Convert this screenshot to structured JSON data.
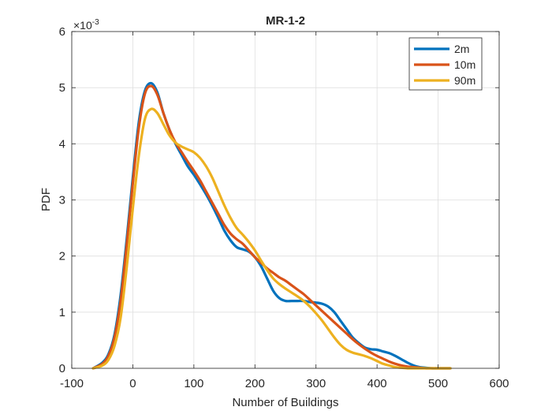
{
  "chart_data": {
    "type": "line",
    "title": "MR-1-2",
    "xlabel": "Number of Buildings",
    "ylabel": "PDF",
    "xlim": [
      -100,
      600
    ],
    "ylim": [
      0,
      6
    ],
    "y_exponent_label": "×10",
    "y_exponent_power": "-3",
    "xticks": [
      "-100",
      "0",
      "100",
      "200",
      "300",
      "400",
      "500",
      "600"
    ],
    "yticks": [
      "0",
      "1",
      "2",
      "3",
      "4",
      "5",
      "6"
    ],
    "grid": true,
    "legend_position": "top-right",
    "series": [
      {
        "name": "2m",
        "color": "#0072BD",
        "x": [
          -65,
          -50,
          -40,
          -30,
          -20,
          -10,
          0,
          10,
          20,
          30,
          40,
          50,
          60,
          70,
          80,
          90,
          100,
          110,
          120,
          130,
          140,
          150,
          160,
          170,
          180,
          190,
          200,
          210,
          220,
          230,
          240,
          250,
          260,
          270,
          280,
          290,
          300,
          310,
          320,
          330,
          340,
          350,
          360,
          370,
          380,
          390,
          400,
          410,
          420,
          430,
          440,
          450,
          460,
          470,
          480,
          490,
          500,
          510,
          520
        ],
        "y": [
          0.0,
          0.1,
          0.25,
          0.6,
          1.3,
          2.3,
          3.4,
          4.4,
          4.95,
          5.08,
          4.92,
          4.55,
          4.25,
          4.0,
          3.8,
          3.6,
          3.45,
          3.28,
          3.1,
          2.9,
          2.68,
          2.45,
          2.28,
          2.16,
          2.12,
          2.08,
          1.98,
          1.82,
          1.6,
          1.38,
          1.25,
          1.2,
          1.2,
          1.2,
          1.2,
          1.18,
          1.17,
          1.15,
          1.1,
          1.0,
          0.85,
          0.7,
          0.55,
          0.45,
          0.37,
          0.34,
          0.33,
          0.3,
          0.27,
          0.22,
          0.16,
          0.1,
          0.05,
          0.02,
          0.01,
          0.0,
          0.0,
          0.0,
          0.0
        ]
      },
      {
        "name": "10m",
        "color": "#D95319",
        "x": [
          -65,
          -50,
          -40,
          -30,
          -20,
          -10,
          0,
          10,
          20,
          30,
          40,
          50,
          60,
          70,
          80,
          90,
          100,
          110,
          120,
          130,
          140,
          150,
          160,
          170,
          180,
          190,
          200,
          210,
          220,
          230,
          240,
          250,
          260,
          270,
          280,
          290,
          300,
          310,
          320,
          330,
          340,
          350,
          360,
          370,
          380,
          390,
          400,
          410,
          420,
          430,
          440,
          450,
          460,
          470,
          480,
          490,
          500,
          510,
          520
        ],
        "y": [
          0.0,
          0.08,
          0.22,
          0.55,
          1.2,
          2.2,
          3.3,
          4.3,
          4.9,
          5.03,
          4.88,
          4.55,
          4.25,
          4.02,
          3.85,
          3.68,
          3.52,
          3.35,
          3.15,
          2.95,
          2.75,
          2.55,
          2.4,
          2.3,
          2.22,
          2.1,
          1.98,
          1.88,
          1.78,
          1.7,
          1.62,
          1.56,
          1.48,
          1.4,
          1.32,
          1.22,
          1.12,
          1.02,
          0.92,
          0.82,
          0.72,
          0.62,
          0.52,
          0.43,
          0.35,
          0.28,
          0.22,
          0.17,
          0.12,
          0.08,
          0.05,
          0.03,
          0.02,
          0.01,
          0.0,
          0.0,
          0.0,
          0.0,
          0.0
        ]
      },
      {
        "name": "90m",
        "color": "#EDB120",
        "x": [
          -65,
          -50,
          -40,
          -30,
          -20,
          -10,
          0,
          10,
          20,
          30,
          40,
          50,
          60,
          70,
          80,
          90,
          100,
          110,
          120,
          130,
          140,
          150,
          160,
          170,
          180,
          190,
          200,
          210,
          220,
          230,
          240,
          250,
          260,
          270,
          280,
          290,
          300,
          310,
          320,
          330,
          340,
          350,
          360,
          370,
          380,
          390,
          400,
          410,
          420,
          430,
          440,
          450,
          460,
          470,
          480,
          490,
          500,
          510,
          520
        ],
        "y": [
          0.0,
          0.05,
          0.15,
          0.4,
          0.9,
          1.8,
          2.85,
          3.8,
          4.45,
          4.62,
          4.55,
          4.35,
          4.15,
          4.02,
          3.95,
          3.9,
          3.85,
          3.75,
          3.6,
          3.4,
          3.15,
          2.9,
          2.68,
          2.5,
          2.38,
          2.25,
          2.1,
          1.92,
          1.75,
          1.6,
          1.5,
          1.42,
          1.35,
          1.28,
          1.2,
          1.1,
          0.98,
          0.85,
          0.7,
          0.55,
          0.42,
          0.33,
          0.28,
          0.25,
          0.22,
          0.18,
          0.13,
          0.08,
          0.05,
          0.02,
          0.01,
          0.0,
          0.0,
          0.0,
          0.0,
          0.0,
          0.0,
          0.0,
          0.0
        ]
      }
    ]
  }
}
